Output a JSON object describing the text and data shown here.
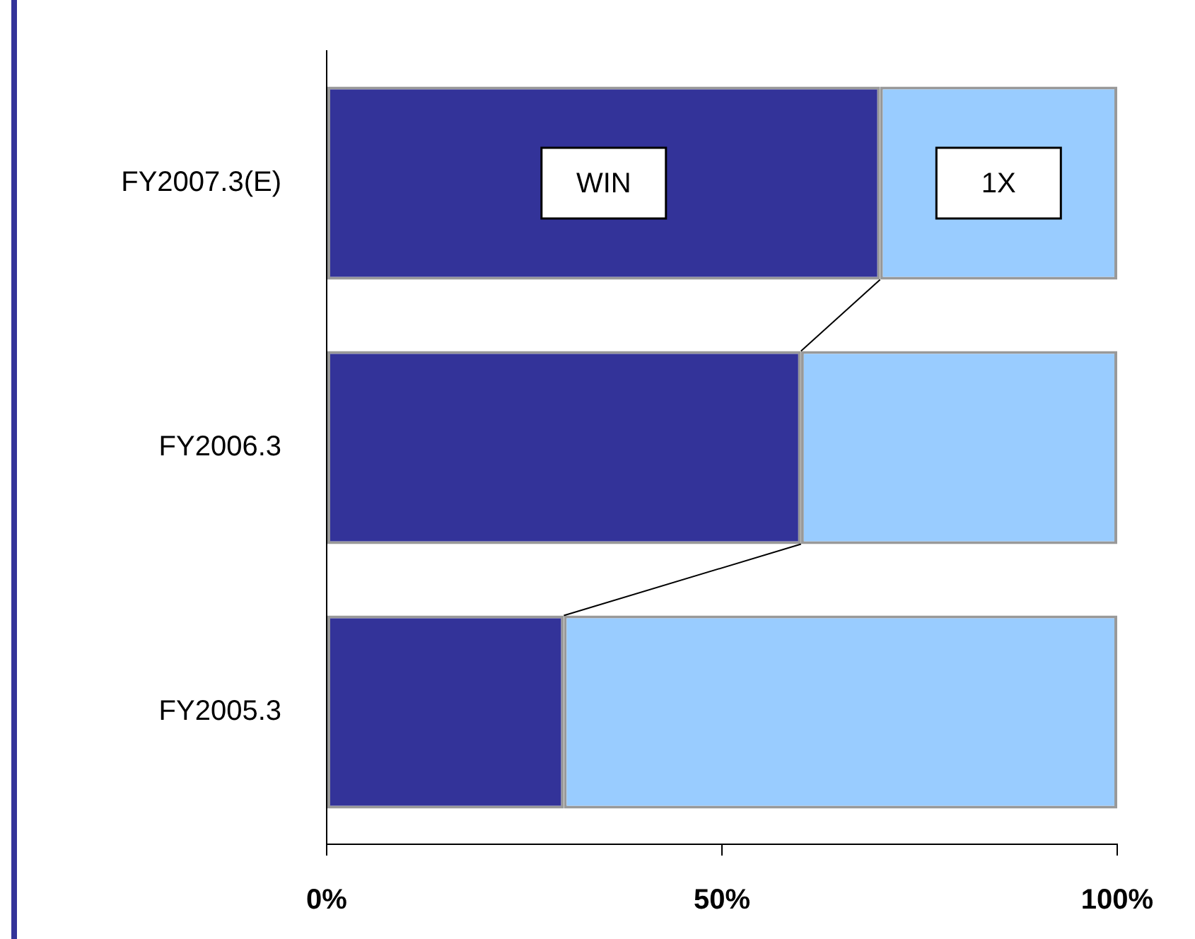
{
  "chart_data": {
    "type": "bar",
    "orientation": "horizontal",
    "stacked": true,
    "categories": [
      "FY2007.3(E)",
      "FY2006.3",
      "FY2005.3"
    ],
    "series": [
      {
        "name": "WIN",
        "color": "#333399",
        "values": [
          70,
          60,
          30
        ]
      },
      {
        "name": "1X",
        "color": "#99ccff",
        "values": [
          30,
          40,
          70
        ]
      }
    ],
    "xlim": [
      0,
      100
    ],
    "xticks": [
      {
        "value": 0,
        "label": "0%"
      },
      {
        "value": 50,
        "label": "50%"
      },
      {
        "value": 100,
        "label": "100%"
      }
    ],
    "grid": false,
    "legend": false
  }
}
